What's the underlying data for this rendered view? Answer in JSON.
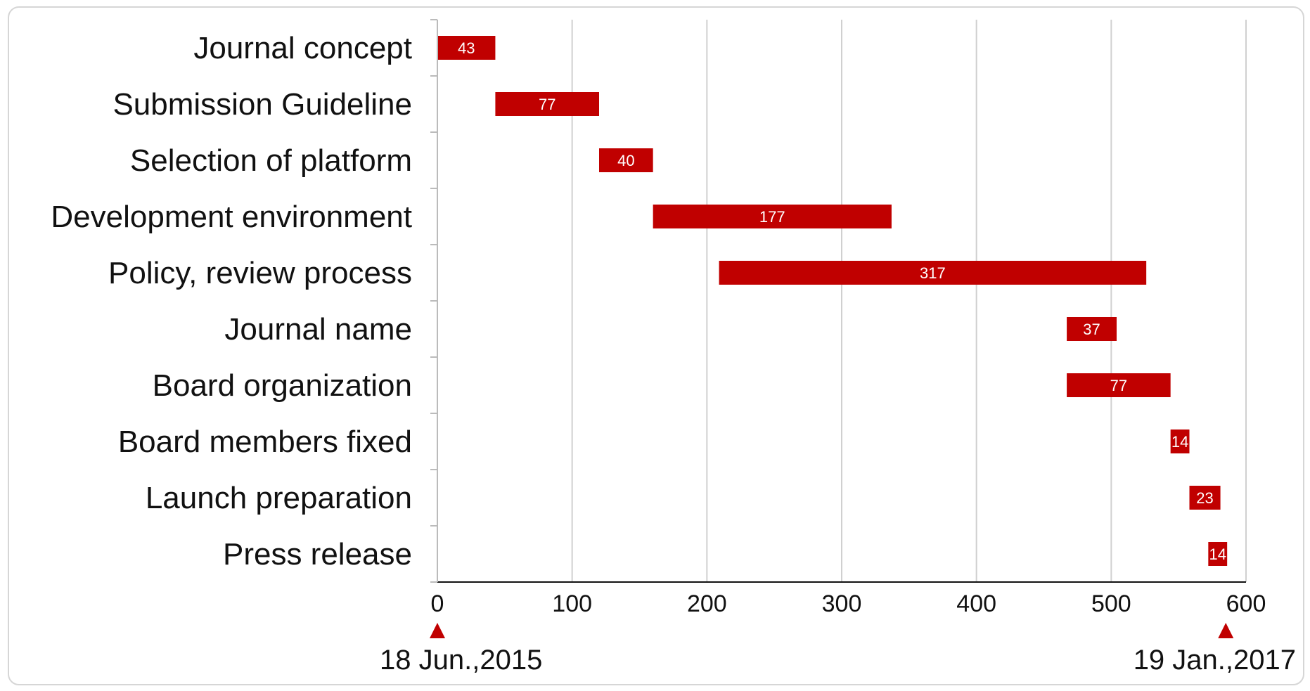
{
  "chart_data": {
    "type": "bar",
    "orientation": "horizontal",
    "variant": "gantt",
    "title": "",
    "xlabel": "",
    "ylabel": "",
    "xlim": [
      0,
      600
    ],
    "x_ticks": [
      "0",
      "100",
      "200",
      "300",
      "400",
      "500",
      "600"
    ],
    "grid": "vertical",
    "categories": [
      "Journal concept",
      "Submission Guideline",
      "Selection of platform",
      "Development environment",
      "Policy, review process",
      "Journal name",
      "Board organization",
      "Board members fixed",
      "Launch preparation",
      "Press release"
    ],
    "starts": [
      0,
      43,
      120,
      160,
      209,
      467,
      467,
      544,
      558,
      572
    ],
    "values": [
      43,
      77,
      40,
      177,
      317,
      37,
      77,
      14,
      23,
      14
    ],
    "data_labels": [
      "43",
      "77",
      "40",
      "177",
      "317",
      "37",
      "77",
      "14",
      "23",
      "14"
    ],
    "start_marker": {
      "value": 0,
      "label": "18 Jun.,2015"
    },
    "end_marker": {
      "value": 585,
      "label": "19 Jan.,2017"
    },
    "colors": {
      "bar": "#c00000",
      "marker": "#c00000",
      "grid": "#d0d0d0",
      "axis": "#111111"
    }
  }
}
